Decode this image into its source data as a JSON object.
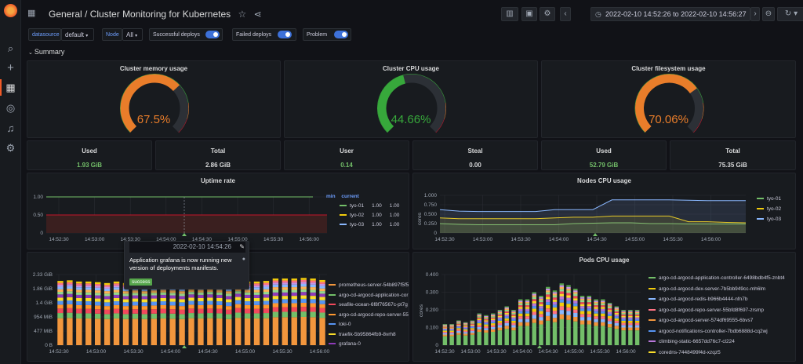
{
  "breadcrumb": {
    "folder": "General",
    "dashboard": "Cluster Monitoring for Kubernetes"
  },
  "time_range": {
    "label": "2022-02-10 14:52:26 to 2022-02-10 14:56:27"
  },
  "variables": [
    {
      "label": "datasource",
      "value": "default"
    },
    {
      "label": "Node",
      "value": "All"
    }
  ],
  "toggles": [
    {
      "label": "Successful deploys",
      "on": true
    },
    {
      "label": "Failed deploys",
      "on": true
    },
    {
      "label": "Problem",
      "on": true
    }
  ],
  "row_title": "Summary",
  "gauges": [
    {
      "title": "Cluster memory usage",
      "value": "67.5%",
      "fraction": 0.675,
      "color": "#e97d2a"
    },
    {
      "title": "Cluster CPU usage",
      "value": "44.66%",
      "fraction": 0.4466,
      "color": "#37a83b"
    },
    {
      "title": "Cluster filesystem usage",
      "value": "70.06%",
      "fraction": 0.7006,
      "color": "#e97d2a"
    }
  ],
  "stats": [
    {
      "title": "Used",
      "value": "1.93 GiB",
      "color": "#73bf69"
    },
    {
      "title": "Total",
      "value": "2.86 GiB",
      "color": "#d8d9da"
    },
    {
      "title": "User",
      "value": "0.14",
      "color": "#73bf69"
    },
    {
      "title": "Steal",
      "value": "0.00",
      "color": "#d8d9da"
    },
    {
      "title": "Used",
      "value": "52.79 GiB",
      "color": "#73bf69"
    },
    {
      "title": "Total",
      "value": "75.35 GiB",
      "color": "#d8d9da"
    }
  ],
  "uptime": {
    "title": "Uptime rate",
    "legend_headers": [
      "min",
      "current"
    ],
    "legend": [
      {
        "name": "tyo-01",
        "min": "1.00",
        "current": "1.00",
        "color": "#73bf69"
      },
      {
        "name": "tyo-02",
        "min": "1.00",
        "current": "1.00",
        "color": "#f2cc0c"
      },
      {
        "name": "tyo-03",
        "min": "1.00",
        "current": "1.00",
        "color": "#8ab8ff"
      }
    ],
    "chart_data": {
      "type": "line",
      "y_ticks": [
        "1.00",
        "0.50",
        "0"
      ],
      "x_ticks": [
        "14:52:30",
        "14:53:00",
        "14:53:30",
        "14:54:00",
        "14:54:30",
        "14:55:00",
        "14:55:30",
        "14:56:00"
      ],
      "ylim": [
        0,
        1
      ],
      "threshold": 0.5,
      "series_value": 1.0
    }
  },
  "nodes_cpu": {
    "title": "Nodes CPU usage",
    "ylabel": "cores",
    "legend": [
      {
        "name": "tyo-01",
        "color": "#73bf69"
      },
      {
        "name": "tyo-02",
        "color": "#f2cc0c"
      },
      {
        "name": "tyo-03",
        "color": "#8ab8ff"
      }
    ],
    "chart_data": {
      "type": "line",
      "y_ticks": [
        "1.000",
        "0.750",
        "0.500",
        "0.250",
        "0"
      ],
      "x_ticks": [
        "14:52:30",
        "14:53:00",
        "14:53:30",
        "14:54:00",
        "14:54:30",
        "14:55:00",
        "14:55:30",
        "14:56:00"
      ],
      "ylim": [
        0,
        1
      ],
      "series": [
        {
          "name": "tyo-01",
          "values": [
            0.25,
            0.23,
            0.22,
            0.22,
            0.22,
            0.22,
            0.22,
            0.25,
            0.26,
            0.27,
            0.27,
            0.25,
            0.25,
            0.24,
            0.24,
            0.24,
            0.24
          ]
        },
        {
          "name": "tyo-02",
          "values": [
            0.4,
            0.38,
            0.38,
            0.38,
            0.38,
            0.38,
            0.4,
            0.42,
            0.42,
            0.45,
            0.45,
            0.45,
            0.45,
            0.3,
            0.3,
            0.28,
            0.27
          ]
        },
        {
          "name": "tyo-03",
          "values": [
            0.62,
            0.58,
            0.57,
            0.57,
            0.57,
            0.57,
            0.62,
            0.62,
            0.62,
            0.88,
            0.88,
            0.88,
            0.88,
            0.87,
            0.86,
            0.86,
            0.86
          ]
        }
      ]
    }
  },
  "memory_chart": {
    "legend": [
      {
        "name": "prometheus-server-54b897f5f5",
        "color": "#f2963d"
      },
      {
        "name": "argo-cd-argocd-application-cor",
        "color": "#73bf69"
      },
      {
        "name": "seafile-ocean-6f8f76567c-pt7g",
        "color": "#f2495c"
      },
      {
        "name": "argo-cd-argocd-repo-server-55t",
        "color": "#ff9830"
      },
      {
        "name": "loki-0",
        "color": "#5794f2"
      },
      {
        "name": "traefik-5b95864fb9-8vrh8",
        "color": "#fade2a"
      },
      {
        "name": "grafana-0",
        "color": "#8f3bb8"
      }
    ],
    "chart_data": {
      "type": "bar",
      "y_ticks": [
        "2.33 GiB",
        "1.86 GiB",
        "1.4 GiB",
        "954 MiB",
        "477 MiB",
        "0 B"
      ],
      "x_ticks": [
        "14:52:30",
        "14:53:00",
        "14:53:30",
        "14:54:00",
        "14:54:30",
        "14:55:00",
        "14:55:30",
        "14:56:00"
      ],
      "ylim": [
        0,
        2.33
      ],
      "totals_gib": [
        2.12,
        2.14,
        2.1,
        2.1,
        2.08,
        2.05,
        2.1,
        2.05,
        2.08,
        2.05,
        2.08,
        2.1,
        2.08,
        2.05,
        2.12,
        2.1,
        2.12,
        2.1,
        2.05,
        2.15,
        2.1,
        2.1,
        2.12,
        2.2,
        2.2,
        2.2,
        2.22,
        2.2,
        2.15
      ]
    }
  },
  "tooltip": {
    "time": "2022-02-10 14:54:26",
    "text": "Application grafana is now running new version of deployments manifests.",
    "tag": "success"
  },
  "pods_cpu": {
    "title": "Pods CPU usage",
    "ylabel": "cores",
    "legend": [
      {
        "name": "argo-cd-argocd-application-controller-6498bdb4f5-znbt4",
        "color": "#73bf69"
      },
      {
        "name": "argo-cd-argocd-dex-server-7b5bb949cc-mh6lm",
        "color": "#f2cc0c"
      },
      {
        "name": "argo-cd-argocd-redis-b966b4444-nfn7b",
        "color": "#8ab8ff"
      },
      {
        "name": "argo-cd-argocd-repo-server-55bfd8f697-zrsmp",
        "color": "#ff7383"
      },
      {
        "name": "argo-cd-argocd-server-574df69555-6bvs7",
        "color": "#f2963d"
      },
      {
        "name": "argocd-notifications-controller-7bdb6888d-cq2wj",
        "color": "#5794f2"
      },
      {
        "name": "climbing-static-6657dd76c7-cl224",
        "color": "#b877d9"
      },
      {
        "name": "coredns-7448499f4d-xzqz5",
        "color": "#fade2a"
      }
    ],
    "chart_data": {
      "type": "bar",
      "y_ticks": [
        "0.400",
        "0.300",
        "0.200",
        "0.100",
        "0"
      ],
      "x_ticks": [
        "14:52:30",
        "14:53:00",
        "14:53:30",
        "14:54:00",
        "14:54:30",
        "14:55:00",
        "14:55:30",
        "14:56:00"
      ],
      "ylim": [
        0,
        0.4
      ],
      "totals": [
        0.12,
        0.12,
        0.14,
        0.13,
        0.14,
        0.18,
        0.17,
        0.18,
        0.2,
        0.22,
        0.2,
        0.26,
        0.26,
        0.3,
        0.28,
        0.33,
        0.31,
        0.35,
        0.34,
        0.32,
        0.28,
        0.28,
        0.26,
        0.26,
        0.24,
        0.22,
        0.2,
        0.2,
        0.2
      ]
    }
  }
}
